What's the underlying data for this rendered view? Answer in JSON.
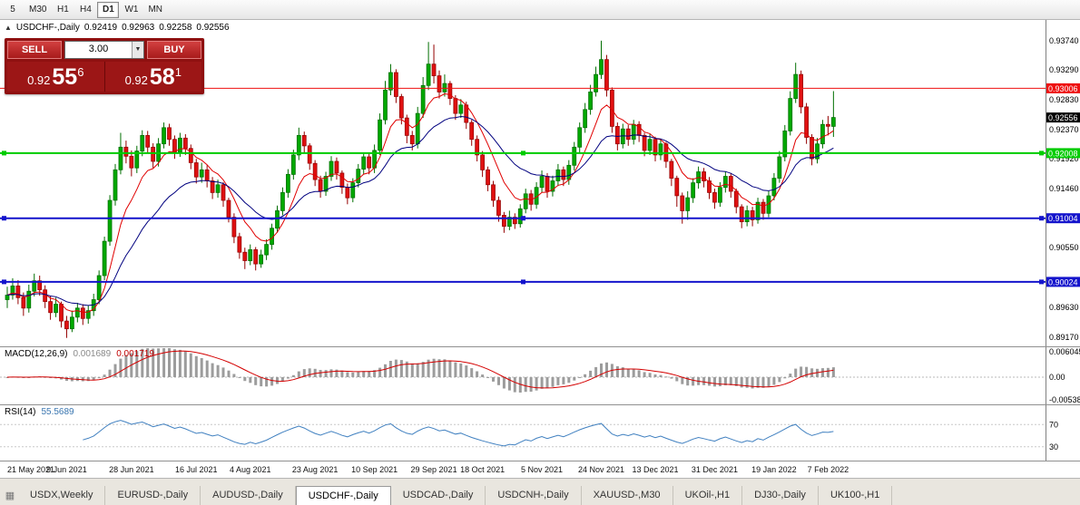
{
  "toolbar": {
    "timeframes": [
      "5",
      "M30",
      "H1",
      "H4",
      "D1",
      "W1",
      "MN"
    ],
    "active": "D1"
  },
  "chart_header": {
    "collapse_icon": "▲",
    "title": "USDCHF-,Daily",
    "open": "0.92419",
    "high": "0.92963",
    "low": "0.92258",
    "close": "0.92556"
  },
  "trade_panel": {
    "sell_label": "SELL",
    "buy_label": "BUY",
    "volume": "3.00",
    "dropdown_icon": "▼",
    "sell_price": {
      "prefix": "0.92",
      "big": "55",
      "sup": "6"
    },
    "buy_price": {
      "prefix": "0.92",
      "big": "58",
      "sup": "1"
    }
  },
  "chart_data": {
    "type": "candlestick",
    "symbol": "USDCHF-",
    "period": "Daily",
    "ylim": [
      0.8903,
      0.9406
    ],
    "colors": {
      "up": "#00a800",
      "up_border": "#006e00",
      "down": "#e01010",
      "down_border": "#940000",
      "ma_fast": "#e00000",
      "ma_slow": "#00007f"
    },
    "ma_fast_period": 8,
    "ma_slow_period": 21,
    "axis_ticks": [
      "0.93740",
      "0.93290",
      "0.92830",
      "0.92370",
      "0.91920",
      "0.91460",
      "0.90550",
      "0.89630",
      "0.89170"
    ],
    "levels": [
      {
        "price": 0.93006,
        "label": "0.93006",
        "color": "#ee1111",
        "width": 1,
        "handles": false
      },
      {
        "price": 0.92008,
        "label": "0.92008",
        "color": "#00cc00",
        "width": 2,
        "handles": true
      },
      {
        "price": 0.91004,
        "label": "0.91004",
        "color": "#1414cc",
        "width": 2,
        "handles": true
      },
      {
        "price": 0.90024,
        "label": "0.90024",
        "color": "#1414cc",
        "width": 2,
        "handles": true
      }
    ],
    "current_price": {
      "value": 0.92556,
      "label": "0.92556",
      "badge_color": "#000000"
    },
    "dates": [
      {
        "label": "21 May 2021",
        "bar": 0
      },
      {
        "label": "9 Jun 2021",
        "bar": 11
      },
      {
        "label": "28 Jun 2021",
        "bar": 23
      },
      {
        "label": "16 Jul 2021",
        "bar": 35
      },
      {
        "label": "4 Aug 2021",
        "bar": 45
      },
      {
        "label": "23 Aug 2021",
        "bar": 57
      },
      {
        "label": "10 Sep 2021",
        "bar": 68
      },
      {
        "label": "29 Sep 2021",
        "bar": 79
      },
      {
        "label": "18 Oct 2021",
        "bar": 88
      },
      {
        "label": "5 Nov 2021",
        "bar": 99
      },
      {
        "label": "24 Nov 2021",
        "bar": 110
      },
      {
        "label": "13 Dec 2021",
        "bar": 120
      },
      {
        "label": "31 Dec 2021",
        "bar": 131
      },
      {
        "label": "19 Jan 2022",
        "bar": 142
      },
      {
        "label": "7 Feb 2022",
        "bar": 152
      }
    ],
    "candles": [
      [
        0.8975,
        0.8995,
        0.8962,
        0.8982
      ],
      [
        0.8982,
        0.9008,
        0.8975,
        0.8996
      ],
      [
        0.8996,
        0.9005,
        0.8968,
        0.8978
      ],
      [
        0.8978,
        0.8986,
        0.895,
        0.8962
      ],
      [
        0.8962,
        0.8998,
        0.8955,
        0.8988
      ],
      [
        0.8988,
        0.9015,
        0.898,
        0.9004
      ],
      [
        0.9004,
        0.9012,
        0.8981,
        0.899
      ],
      [
        0.899,
        0.8997,
        0.8962,
        0.8972
      ],
      [
        0.8972,
        0.898,
        0.8944,
        0.8955
      ],
      [
        0.8955,
        0.8978,
        0.8948,
        0.8968
      ],
      [
        0.8968,
        0.8972,
        0.8932,
        0.8942
      ],
      [
        0.8942,
        0.895,
        0.8916,
        0.893
      ],
      [
        0.893,
        0.8958,
        0.8925,
        0.8948
      ],
      [
        0.8948,
        0.897,
        0.894,
        0.8962
      ],
      [
        0.8962,
        0.8968,
        0.8936,
        0.8946
      ],
      [
        0.8946,
        0.8966,
        0.8938,
        0.8958
      ],
      [
        0.8958,
        0.8984,
        0.895,
        0.8975
      ],
      [
        0.8975,
        0.902,
        0.8968,
        0.9012
      ],
      [
        0.9012,
        0.9072,
        0.9005,
        0.9065
      ],
      [
        0.9065,
        0.9136,
        0.9058,
        0.9128
      ],
      [
        0.9128,
        0.9184,
        0.912,
        0.9175
      ],
      [
        0.9175,
        0.9232,
        0.9168,
        0.921
      ],
      [
        0.921,
        0.922,
        0.9185,
        0.9196
      ],
      [
        0.9196,
        0.9205,
        0.9165,
        0.9178
      ],
      [
        0.9178,
        0.9212,
        0.917,
        0.9204
      ],
      [
        0.9204,
        0.9236,
        0.9196,
        0.9228
      ],
      [
        0.9228,
        0.9235,
        0.92,
        0.921
      ],
      [
        0.921,
        0.9216,
        0.9178,
        0.9188
      ],
      [
        0.9188,
        0.9224,
        0.918,
        0.9215
      ],
      [
        0.9215,
        0.9248,
        0.9208,
        0.924
      ],
      [
        0.924,
        0.9246,
        0.9212,
        0.9222
      ],
      [
        0.9222,
        0.9228,
        0.9192,
        0.9202
      ],
      [
        0.9202,
        0.9232,
        0.9195,
        0.9224
      ],
      [
        0.9224,
        0.923,
        0.9198,
        0.9208
      ],
      [
        0.9208,
        0.9214,
        0.9176,
        0.9186
      ],
      [
        0.9186,
        0.9192,
        0.9154,
        0.9164
      ],
      [
        0.9164,
        0.9186,
        0.9155,
        0.9175
      ],
      [
        0.9175,
        0.9182,
        0.9148,
        0.9158
      ],
      [
        0.9158,
        0.9164,
        0.913,
        0.914
      ],
      [
        0.914,
        0.916,
        0.9132,
        0.9152
      ],
      [
        0.9152,
        0.9156,
        0.9118,
        0.9128
      ],
      [
        0.9128,
        0.9132,
        0.9094,
        0.9102
      ],
      [
        0.9102,
        0.9108,
        0.9062,
        0.9072
      ],
      [
        0.9072,
        0.9078,
        0.9038,
        0.9048
      ],
      [
        0.9048,
        0.9055,
        0.9022,
        0.9035
      ],
      [
        0.9035,
        0.906,
        0.9028,
        0.9052
      ],
      [
        0.9052,
        0.9056,
        0.902,
        0.903
      ],
      [
        0.903,
        0.9052,
        0.9024,
        0.9044
      ],
      [
        0.9044,
        0.9068,
        0.9036,
        0.906
      ],
      [
        0.906,
        0.9092,
        0.9052,
        0.9085
      ],
      [
        0.9085,
        0.912,
        0.9078,
        0.9112
      ],
      [
        0.9112,
        0.9148,
        0.9105,
        0.914
      ],
      [
        0.914,
        0.9176,
        0.9132,
        0.9168
      ],
      [
        0.9168,
        0.9206,
        0.916,
        0.9198
      ],
      [
        0.9198,
        0.924,
        0.919,
        0.9228
      ],
      [
        0.9228,
        0.9234,
        0.9202,
        0.9212
      ],
      [
        0.9212,
        0.9216,
        0.9175,
        0.9185
      ],
      [
        0.9185,
        0.919,
        0.915,
        0.916
      ],
      [
        0.916,
        0.9166,
        0.9132,
        0.9142
      ],
      [
        0.9142,
        0.9172,
        0.9135,
        0.9165
      ],
      [
        0.9165,
        0.9196,
        0.9158,
        0.9188
      ],
      [
        0.9188,
        0.9194,
        0.916,
        0.917
      ],
      [
        0.917,
        0.9174,
        0.9138,
        0.9148
      ],
      [
        0.9148,
        0.9154,
        0.9122,
        0.9132
      ],
      [
        0.9132,
        0.9162,
        0.9125,
        0.9155
      ],
      [
        0.9155,
        0.9184,
        0.9148,
        0.9176
      ],
      [
        0.9176,
        0.9202,
        0.9168,
        0.9195
      ],
      [
        0.9195,
        0.92,
        0.9168,
        0.9178
      ],
      [
        0.9178,
        0.9214,
        0.917,
        0.9205
      ],
      [
        0.9205,
        0.9262,
        0.9198,
        0.9252
      ],
      [
        0.9252,
        0.9312,
        0.9245,
        0.9298
      ],
      [
        0.9298,
        0.9338,
        0.929,
        0.9325
      ],
      [
        0.9325,
        0.933,
        0.9278,
        0.9288
      ],
      [
        0.9288,
        0.9292,
        0.9245,
        0.9255
      ],
      [
        0.9255,
        0.926,
        0.9216,
        0.9228
      ],
      [
        0.9228,
        0.9235,
        0.9205,
        0.9215
      ],
      [
        0.9215,
        0.9272,
        0.9208,
        0.9262
      ],
      [
        0.9262,
        0.9318,
        0.9255,
        0.9305
      ],
      [
        0.9305,
        0.9372,
        0.9298,
        0.9338
      ],
      [
        0.9338,
        0.9368,
        0.9308,
        0.932
      ],
      [
        0.932,
        0.9328,
        0.9285,
        0.9295
      ],
      [
        0.9295,
        0.9322,
        0.9288,
        0.9308
      ],
      [
        0.9308,
        0.9312,
        0.9275,
        0.9285
      ],
      [
        0.9285,
        0.929,
        0.9252,
        0.9262
      ],
      [
        0.9262,
        0.9284,
        0.9255,
        0.9275
      ],
      [
        0.9275,
        0.928,
        0.9238,
        0.9248
      ],
      [
        0.9248,
        0.9252,
        0.9212,
        0.9222
      ],
      [
        0.9222,
        0.9228,
        0.9188,
        0.9198
      ],
      [
        0.9198,
        0.9204,
        0.9164,
        0.9175
      ],
      [
        0.9175,
        0.918,
        0.9142,
        0.9152
      ],
      [
        0.9152,
        0.9158,
        0.9118,
        0.9128
      ],
      [
        0.9128,
        0.9134,
        0.9095,
        0.9105
      ],
      [
        0.9105,
        0.911,
        0.9078,
        0.9088
      ],
      [
        0.9088,
        0.9112,
        0.9082,
        0.9102
      ],
      [
        0.9102,
        0.9108,
        0.9084,
        0.9092
      ],
      [
        0.9092,
        0.9122,
        0.9086,
        0.9115
      ],
      [
        0.9115,
        0.9146,
        0.9108,
        0.9138
      ],
      [
        0.9138,
        0.9144,
        0.9112,
        0.9122
      ],
      [
        0.9122,
        0.9156,
        0.9115,
        0.9148
      ],
      [
        0.9148,
        0.9174,
        0.914,
        0.9165
      ],
      [
        0.9165,
        0.917,
        0.9132,
        0.9142
      ],
      [
        0.9142,
        0.9166,
        0.9134,
        0.9158
      ],
      [
        0.9158,
        0.9184,
        0.915,
        0.9175
      ],
      [
        0.9175,
        0.918,
        0.915,
        0.916
      ],
      [
        0.916,
        0.919,
        0.9152,
        0.9182
      ],
      [
        0.9182,
        0.9218,
        0.9174,
        0.921
      ],
      [
        0.921,
        0.9248,
        0.9202,
        0.924
      ],
      [
        0.924,
        0.9278,
        0.9232,
        0.9268
      ],
      [
        0.9268,
        0.9306,
        0.926,
        0.9295
      ],
      [
        0.9295,
        0.9334,
        0.9288,
        0.9322
      ],
      [
        0.9322,
        0.9374,
        0.9315,
        0.9345
      ],
      [
        0.9345,
        0.9352,
        0.9288,
        0.9298
      ],
      [
        0.9298,
        0.9302,
        0.9232,
        0.9242
      ],
      [
        0.9242,
        0.9248,
        0.9205,
        0.9215
      ],
      [
        0.9215,
        0.9246,
        0.9208,
        0.9238
      ],
      [
        0.9238,
        0.9244,
        0.9212,
        0.9222
      ],
      [
        0.9222,
        0.9252,
        0.9214,
        0.9245
      ],
      [
        0.9245,
        0.925,
        0.9218,
        0.9228
      ],
      [
        0.9228,
        0.9232,
        0.9196,
        0.9205
      ],
      [
        0.9205,
        0.923,
        0.9198,
        0.9222
      ],
      [
        0.9222,
        0.9226,
        0.9188,
        0.9198
      ],
      [
        0.9198,
        0.9222,
        0.919,
        0.9215
      ],
      [
        0.9215,
        0.9218,
        0.9178,
        0.9188
      ],
      [
        0.9188,
        0.9192,
        0.915,
        0.9162
      ],
      [
        0.9162,
        0.9166,
        0.9118,
        0.9135
      ],
      [
        0.9135,
        0.914,
        0.9092,
        0.9112
      ],
      [
        0.9112,
        0.9142,
        0.9098,
        0.9132
      ],
      [
        0.9132,
        0.9162,
        0.9124,
        0.9155
      ],
      [
        0.9155,
        0.918,
        0.9146,
        0.9172
      ],
      [
        0.9172,
        0.9178,
        0.9148,
        0.9158
      ],
      [
        0.9158,
        0.9164,
        0.913,
        0.914
      ],
      [
        0.914,
        0.9146,
        0.9115,
        0.9125
      ],
      [
        0.9125,
        0.9156,
        0.9118,
        0.9148
      ],
      [
        0.9148,
        0.9172,
        0.914,
        0.9165
      ],
      [
        0.9165,
        0.917,
        0.9132,
        0.9142
      ],
      [
        0.9142,
        0.9146,
        0.9108,
        0.9118
      ],
      [
        0.9118,
        0.9122,
        0.9085,
        0.9095
      ],
      [
        0.9095,
        0.912,
        0.9088,
        0.9112
      ],
      [
        0.9112,
        0.9118,
        0.9088,
        0.9098
      ],
      [
        0.9098,
        0.9132,
        0.9092,
        0.9125
      ],
      [
        0.9125,
        0.913,
        0.9098,
        0.9108
      ],
      [
        0.9108,
        0.9142,
        0.9102,
        0.9135
      ],
      [
        0.9135,
        0.917,
        0.9128,
        0.9162
      ],
      [
        0.9162,
        0.9204,
        0.9155,
        0.9195
      ],
      [
        0.9195,
        0.9244,
        0.9188,
        0.9235
      ],
      [
        0.9235,
        0.9296,
        0.9228,
        0.9285
      ],
      [
        0.9285,
        0.934,
        0.9278,
        0.9322
      ],
      [
        0.9322,
        0.9328,
        0.9262,
        0.9272
      ],
      [
        0.9272,
        0.9278,
        0.9215,
        0.9225
      ],
      [
        0.9225,
        0.923,
        0.9182,
        0.9192
      ],
      [
        0.9192,
        0.9224,
        0.9185,
        0.9215
      ],
      [
        0.9215,
        0.9252,
        0.9208,
        0.9245
      ],
      [
        0.9245,
        0.9258,
        0.9228,
        0.9242
      ],
      [
        0.92419,
        0.92963,
        0.92258,
        0.92556
      ]
    ]
  },
  "macd": {
    "label": "MACD(12,26,9)",
    "value_main": "0.001689",
    "value_signal": "0.001719",
    "fast": 12,
    "slow": 26,
    "signal": 9,
    "ylim": [
      -0.006,
      0.0066
    ],
    "axis_ticks": [
      "0.006045",
      "0.00",
      "-0.005385"
    ],
    "colors": {
      "histogram": "#9c9c9c",
      "signal": "#d40000"
    }
  },
  "rsi": {
    "label": "RSI(14)",
    "value": "55.5689",
    "period": 14,
    "levels": [
      70,
      30
    ],
    "axis_ticks": [
      "70",
      "30"
    ],
    "ylim": [
      5,
      105
    ],
    "color": "#4080c0"
  },
  "tabs": {
    "items": [
      {
        "label": "USDX,Weekly",
        "active": false
      },
      {
        "label": "EURUSD-,Daily",
        "active": false
      },
      {
        "label": "AUDUSD-,Daily",
        "active": false
      },
      {
        "label": "USDCHF-,Daily",
        "active": true
      },
      {
        "label": "USDCAD-,Daily",
        "active": false
      },
      {
        "label": "USDCNH-,Daily",
        "active": false
      },
      {
        "label": "XAUUSD-,M30",
        "active": false
      },
      {
        "label": "UKOil-,H1",
        "active": false
      },
      {
        "label": "DJ30-,Daily",
        "active": false
      },
      {
        "label": "UK100-,H1",
        "active": false
      }
    ]
  }
}
